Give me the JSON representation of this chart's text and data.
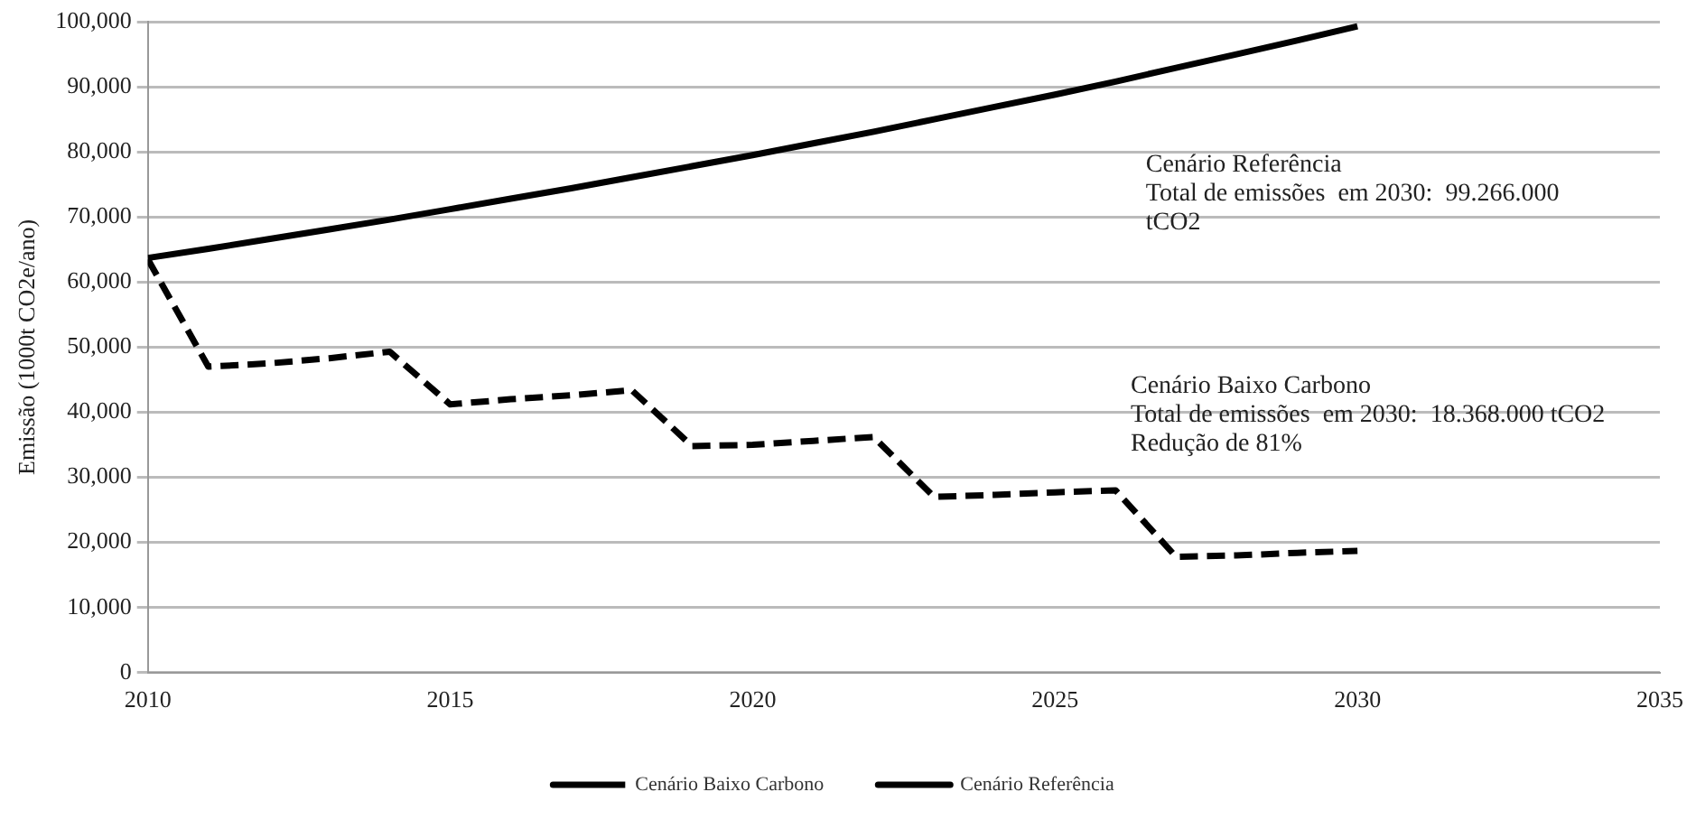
{
  "chart_data": {
    "type": "line",
    "ylabel": "Emissão (1000t CO2e/ano)",
    "x": [
      2010,
      2011,
      2012,
      2013,
      2014,
      2015,
      2016,
      2017,
      2018,
      2019,
      2020,
      2021,
      2022,
      2023,
      2024,
      2025,
      2026,
      2027,
      2028,
      2029,
      2030
    ],
    "series": [
      {
        "name": "Cenário Baixo Carbono",
        "color": "#000000",
        "line_style": "dashed",
        "values": [
          63500,
          47000,
          47500,
          48300,
          49300,
          41200,
          42000,
          42600,
          43400,
          34800,
          35000,
          35600,
          36200,
          27000,
          27300,
          27700,
          28000,
          17800,
          18000,
          18400,
          18700
        ]
      },
      {
        "name": "Cenário Referência",
        "color": "#000000",
        "line_style": "solid",
        "values": [
          63700,
          65100,
          66600,
          68100,
          69600,
          71200,
          72800,
          74400,
          76100,
          77800,
          79500,
          81300,
          83100,
          85000,
          86900,
          88800,
          90800,
          92900,
          95000,
          97100,
          99300
        ]
      }
    ],
    "xlim": [
      2010,
      2035
    ],
    "xticks": [
      2010,
      2015,
      2020,
      2025,
      2030,
      2035
    ],
    "ylim": [
      0,
      100000
    ],
    "yticks": [
      {
        "value": 0,
        "label": "0"
      },
      {
        "value": 10000,
        "label": "10,000"
      },
      {
        "value": 20000,
        "label": "20,000"
      },
      {
        "value": 30000,
        "label": "30,000"
      },
      {
        "value": 40000,
        "label": "40,000"
      },
      {
        "value": 50000,
        "label": "50,000"
      },
      {
        "value": 60000,
        "label": "60,000"
      },
      {
        "value": 70000,
        "label": "70,000"
      },
      {
        "value": 80000,
        "label": "80,000"
      },
      {
        "value": 90000,
        "label": "90,000"
      },
      {
        "value": 100000,
        "label": "100,000"
      }
    ],
    "grid": "y",
    "legend": "bottom",
    "marker": "none",
    "annotations": [
      "Cenário Referência\nTotal de emissões  em 2030:  99.266.000\ntCO2",
      "Cenário Baixo Carbono\nTotal de emissões  em 2030:  18.368.000 tCO2\nRedução de 81%"
    ]
  }
}
